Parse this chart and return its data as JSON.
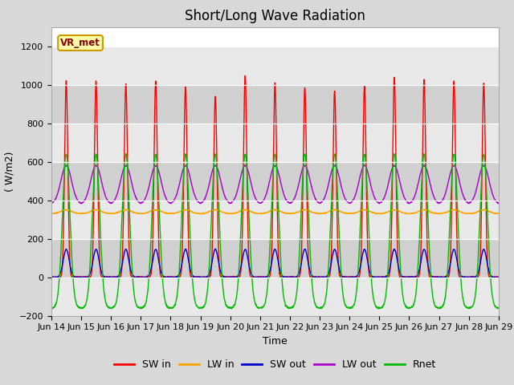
{
  "title": "Short/Long Wave Radiation",
  "xlabel": "Time",
  "ylabel": "( W/m2)",
  "ylim": [
    -200,
    1300
  ],
  "yticks": [
    -200,
    0,
    200,
    400,
    600,
    800,
    1000,
    1200
  ],
  "xlim": [
    0,
    15.0
  ],
  "xtick_labels": [
    "Jun 14",
    "Jun 15",
    "Jun 16",
    "Jun 17",
    "Jun 18",
    "Jun 19",
    "Jun 20",
    "Jun 21",
    "Jun 22",
    "Jun 23",
    "Jun 24",
    "Jun 25",
    "Jun 26",
    "Jun 27",
    "Jun 28",
    "Jun 29"
  ],
  "annotation_text": "VR_met",
  "bg_color": "#d8d8d8",
  "plot_bg_color": "#ffffff",
  "stripe_colors": [
    "#e8e8e8",
    "#d0d0d0"
  ],
  "line_colors": {
    "SW_in": "#ff0000",
    "LW_in": "#ffa500",
    "SW_out": "#0000cc",
    "LW_out": "#aa00cc",
    "Rnet": "#00bb00"
  },
  "legend_labels": [
    "SW in",
    "LW in",
    "SW out",
    "LW out",
    "Rnet"
  ],
  "title_fontsize": 12,
  "axis_fontsize": 9,
  "tick_fontsize": 8,
  "n_days": 15,
  "sw_peaks": [
    1020,
    1020,
    1005,
    1020,
    990,
    940,
    1050,
    1010,
    985,
    970,
    995,
    1040,
    1025,
    1020,
    1010
  ],
  "lw_in_base": 330,
  "lw_out_night": 380,
  "lw_out_day_peak": 580,
  "sw_out_peak": 145,
  "rnet_night": -80,
  "rnet_day_peak": 640
}
